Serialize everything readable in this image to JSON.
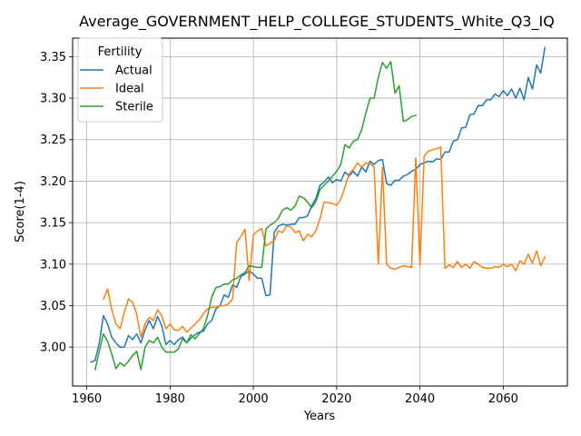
{
  "chart_data": {
    "type": "line",
    "title": "Average_GOVERNMENT_HELP_COLLEGE_STUDENTS_White_Q3_IQ",
    "xlabel": "Years",
    "ylabel": "Score(1-4)",
    "xlim": [
      1956.6,
      2075.4
    ],
    "ylim": [
      2.9531,
      3.3723
    ],
    "xticks": [
      1960,
      1980,
      2000,
      2020,
      2040,
      2060
    ],
    "xtick_labels": [
      "1960",
      "1980",
      "2000",
      "2020",
      "2040",
      "2060"
    ],
    "yticks": [
      3.0,
      3.05,
      3.1,
      3.15,
      3.2,
      3.25,
      3.3,
      3.35
    ],
    "ytick_labels": [
      "3.00",
      "3.05",
      "3.10",
      "3.15",
      "3.20",
      "3.25",
      "3.30",
      "3.35"
    ],
    "grid": true,
    "legend": {
      "title": "Fertility",
      "placement": "upper-left"
    },
    "series": [
      {
        "name": "Actual",
        "color": "#1f77b4",
        "x": [
          1961,
          1962,
          1963,
          1964,
          1965,
          1966,
          1967,
          1968,
          1969,
          1970,
          1971,
          1972,
          1973,
          1974,
          1975,
          1976,
          1977,
          1978,
          1979,
          1980,
          1981,
          1982,
          1983,
          1984,
          1985,
          1986,
          1987,
          1988,
          1989,
          1990,
          1991,
          1992,
          1993,
          1994,
          1995,
          1996,
          1997,
          1998,
          1999,
          2000,
          2001,
          2002,
          2003,
          2004,
          2005,
          2006,
          2007,
          2008,
          2009,
          2010,
          2011,
          2012,
          2013,
          2014,
          2015,
          2016,
          2017,
          2018,
          2019,
          2020,
          2021,
          2022,
          2023,
          2024,
          2025,
          2026,
          2027,
          2028,
          2029,
          2030,
          2031,
          2032,
          2033,
          2034,
          2035,
          2036,
          2037,
          2038,
          2039,
          2040,
          2041,
          2042,
          2043,
          2044,
          2045,
          2046,
          2047,
          2048,
          2049,
          2050,
          2051,
          2052,
          2053,
          2054,
          2055,
          2056,
          2057,
          2058,
          2059,
          2060,
          2061,
          2062,
          2063,
          2064,
          2065,
          2066,
          2067,
          2068,
          2069,
          2070
        ],
        "y": [
          2.982,
          2.984,
          3.005,
          3.038,
          3.028,
          3.012,
          3.005,
          3.0,
          3.0,
          3.014,
          3.009,
          3.016,
          3.005,
          3.021,
          3.032,
          3.022,
          3.037,
          3.026,
          3.003,
          3.008,
          3.003,
          3.009,
          3.012,
          3.005,
          3.011,
          3.015,
          3.018,
          3.019,
          3.028,
          3.032,
          3.046,
          3.05,
          3.063,
          3.06,
          3.075,
          3.072,
          3.085,
          3.088,
          3.092,
          3.088,
          3.083,
          3.083,
          3.062,
          3.063,
          3.138,
          3.146,
          3.148,
          3.147,
          3.148,
          3.148,
          3.156,
          3.156,
          3.158,
          3.17,
          3.179,
          3.195,
          3.199,
          3.205,
          3.198,
          3.202,
          3.2,
          3.211,
          3.206,
          3.212,
          3.206,
          3.217,
          3.211,
          3.224,
          3.22,
          3.225,
          3.226,
          3.197,
          3.195,
          3.201,
          3.201,
          3.206,
          3.208,
          3.212,
          3.214,
          3.22,
          3.222,
          3.224,
          3.223,
          3.227,
          3.226,
          3.235,
          3.235,
          3.248,
          3.25,
          3.264,
          3.265,
          3.28,
          3.281,
          3.291,
          3.291,
          3.298,
          3.298,
          3.305,
          3.302,
          3.309,
          3.303,
          3.311,
          3.3,
          3.312,
          3.298,
          3.325,
          3.311,
          3.34,
          3.33,
          3.361
        ]
      },
      {
        "name": "Ideal",
        "color": "#ff7f0e",
        "x": [
          1964,
          1965,
          1966,
          1967,
          1968,
          1969,
          1970,
          1971,
          1972,
          1973,
          1974,
          1975,
          1976,
          1977,
          1978,
          1979,
          1980,
          1981,
          1982,
          1983,
          1984,
          1985,
          1986,
          1987,
          1988,
          1989,
          1990,
          1991,
          1992,
          1993,
          1994,
          1995,
          1996,
          1997,
          1998,
          1999,
          2000,
          2001,
          2002,
          2003,
          2004,
          2005,
          2006,
          2007,
          2008,
          2009,
          2010,
          2011,
          2012,
          2013,
          2014,
          2015,
          2016,
          2017,
          2018,
          2019,
          2020,
          2021,
          2022,
          2023,
          2024,
          2025,
          2026,
          2027,
          2028,
          2029,
          2030,
          2031,
          2032,
          2033,
          2034,
          2035,
          2036,
          2037,
          2038,
          2039,
          2040,
          2041,
          2042,
          2043,
          2044,
          2045,
          2046,
          2047,
          2048,
          2049,
          2050,
          2051,
          2052,
          2053,
          2054,
          2055,
          2056,
          2057,
          2058,
          2059,
          2060,
          2061,
          2062,
          2063,
          2064,
          2065,
          2066,
          2067,
          2068,
          2069,
          2070
        ],
        "y": [
          3.058,
          3.07,
          3.045,
          3.028,
          3.022,
          3.042,
          3.058,
          3.054,
          3.04,
          3.012,
          3.028,
          3.036,
          3.032,
          3.045,
          3.038,
          3.022,
          3.028,
          3.021,
          3.02,
          3.025,
          3.018,
          3.023,
          3.028,
          3.033,
          3.04,
          3.046,
          3.048,
          3.048,
          3.05,
          3.05,
          3.052,
          3.058,
          3.126,
          3.133,
          3.142,
          3.08,
          3.135,
          3.14,
          3.143,
          3.122,
          3.125,
          3.128,
          3.14,
          3.138,
          3.146,
          3.145,
          3.138,
          3.14,
          3.128,
          3.136,
          3.133,
          3.14,
          3.155,
          3.175,
          3.174,
          3.173,
          3.171,
          3.178,
          3.193,
          3.209,
          3.214,
          3.222,
          3.217,
          3.222,
          3.221,
          3.217,
          3.1,
          3.216,
          3.1,
          3.095,
          3.094,
          3.096,
          3.098,
          3.097,
          3.096,
          3.228,
          3.098,
          3.23,
          3.236,
          3.238,
          3.239,
          3.241,
          3.095,
          3.099,
          3.096,
          3.103,
          3.096,
          3.1,
          3.095,
          3.103,
          3.1,
          3.096,
          3.095,
          3.095,
          3.097,
          3.096,
          3.1,
          3.097,
          3.1,
          3.092,
          3.104,
          3.1,
          3.112,
          3.101,
          3.116,
          3.098,
          3.109
        ]
      },
      {
        "name": "Sterile",
        "color": "#2ca02c",
        "x": [
          1962,
          1963,
          1964,
          1965,
          1966,
          1967,
          1968,
          1969,
          1970,
          1971,
          1972,
          1973,
          1974,
          1975,
          1976,
          1977,
          1978,
          1979,
          1980,
          1981,
          1982,
          1983,
          1984,
          1985,
          1986,
          1987,
          1988,
          1989,
          1990,
          1991,
          1992,
          1993,
          1994,
          1995,
          1996,
          1997,
          1998,
          1999,
          2000,
          2001,
          2002,
          2003,
          2004,
          2005,
          2006,
          2007,
          2008,
          2009,
          2010,
          2011,
          2012,
          2013,
          2014,
          2015,
          2016,
          2017,
          2018,
          2019,
          2020,
          2021,
          2022,
          2023,
          2024,
          2025,
          2026,
          2027,
          2028,
          2029,
          2030,
          2031,
          2032,
          2033,
          2034,
          2035,
          2036,
          2037,
          2038,
          2039
        ],
        "y": [
          2.973,
          2.995,
          3.016,
          3.007,
          2.992,
          2.974,
          2.981,
          2.977,
          2.983,
          2.99,
          2.995,
          2.973,
          3.0,
          3.008,
          3.005,
          3.012,
          3.0,
          2.994,
          2.994,
          2.994,
          2.998,
          3.01,
          3.005,
          3.015,
          3.01,
          3.016,
          3.022,
          3.038,
          3.06,
          3.072,
          3.073,
          3.076,
          3.076,
          3.081,
          3.083,
          3.087,
          3.09,
          3.098,
          3.097,
          3.096,
          3.096,
          3.142,
          3.147,
          3.15,
          3.155,
          3.165,
          3.168,
          3.165,
          3.17,
          3.182,
          3.18,
          3.175,
          3.168,
          3.175,
          3.19,
          3.195,
          3.2,
          3.206,
          3.212,
          3.22,
          3.244,
          3.24,
          3.248,
          3.25,
          3.262,
          3.282,
          3.3,
          3.3,
          3.325,
          3.343,
          3.336,
          3.344,
          3.306,
          3.315,
          3.272,
          3.274,
          3.278,
          3.279
        ]
      }
    ]
  }
}
